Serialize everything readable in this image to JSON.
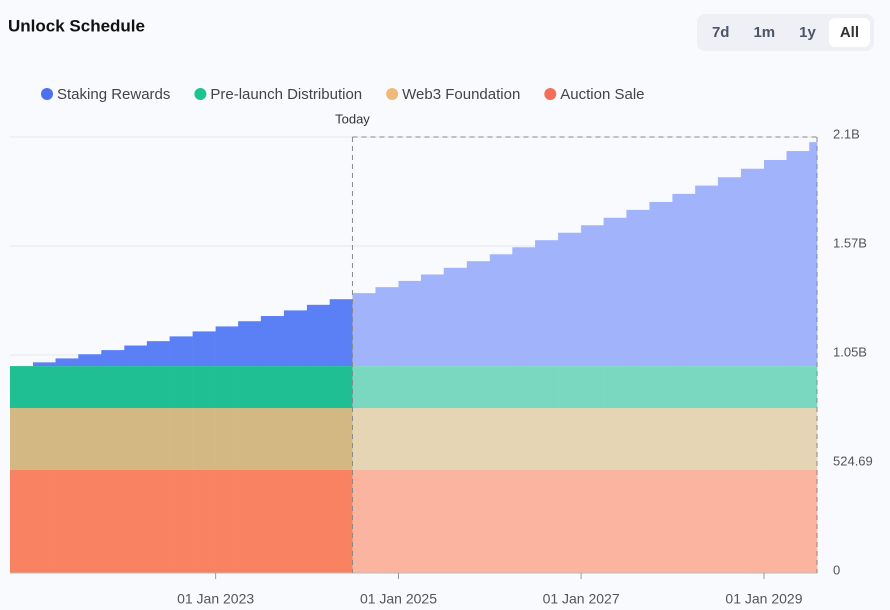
{
  "range_buttons": [
    "7d",
    "1m",
    "1y",
    "All"
  ],
  "active_range": "All",
  "chart_data": {
    "type": "stacked-step-area",
    "title": "Unlock Schedule",
    "today": {
      "label": "Today",
      "x": "2024-07-01"
    },
    "x": [
      "2020-10-01",
      "2021-01-01",
      "2021-04-01",
      "2021-07-01",
      "2021-10-01",
      "2022-01-01",
      "2022-04-01",
      "2022-07-01",
      "2022-10-01",
      "2023-01-01",
      "2023-04-01",
      "2023-07-01",
      "2023-10-01",
      "2024-01-01",
      "2024-04-01",
      "2024-07-01",
      "2024-10-01",
      "2025-01-01",
      "2025-04-01",
      "2025-07-01",
      "2025-10-01",
      "2026-01-01",
      "2026-04-01",
      "2026-07-01",
      "2026-10-01",
      "2027-01-01",
      "2027-04-01",
      "2027-07-01",
      "2027-10-01",
      "2028-01-01",
      "2028-04-01",
      "2028-07-01",
      "2028-10-01",
      "2029-01-01",
      "2029-04-01",
      "2029-07-01"
    ],
    "xlim": [
      "2020-10-01",
      "2029-08-01"
    ],
    "xticks": [
      {
        "value": "2023-01-01",
        "label": "01 Jan 2023"
      },
      {
        "value": "2025-01-01",
        "label": "01 Jan 2025"
      },
      {
        "value": "2027-01-01",
        "label": "01 Jan 2027"
      },
      {
        "value": "2029-01-01",
        "label": "01 Jan 2029"
      }
    ],
    "ylim": [
      0,
      2098.76
    ],
    "yticks": [
      0,
      524.69,
      {
        "value": 1049.38,
        "label": "1.05B"
      },
      {
        "value": 1574.07,
        "label": "1.57B"
      },
      {
        "value": 2098.76,
        "label": "2.1B"
      }
    ],
    "grid": true,
    "series": [
      {
        "name": "Staking Rewards",
        "color": "#5b7ff5",
        "future_color": "#a0b3fb",
        "legend_color": "#4d6ff0",
        "values": [
          0,
          18,
          37,
          57,
          77,
          99,
          120,
          143,
          167,
          191,
          216,
          241,
          268,
          295,
          322,
          351,
          380,
          410,
          441,
          473,
          505,
          538,
          572,
          606,
          642,
          678,
          714,
          752,
          790,
          829,
          869,
          909,
          950,
          992,
          1035,
          1078
        ]
      },
      {
        "name": "Pre-launch Distribution",
        "color": "#1fbe93",
        "future_color": "#7bd8c0",
        "legend_color": "#1dc48f",
        "values": [
          202,
          202,
          202,
          202,
          202,
          202,
          202,
          202,
          202,
          202,
          202,
          202,
          202,
          202,
          202,
          202,
          202,
          202,
          202,
          202,
          202,
          202,
          202,
          202,
          202,
          202,
          202,
          202,
          202,
          202,
          202,
          202,
          202,
          202,
          202,
          202
        ]
      },
      {
        "name": "Web3 Foundation",
        "color": "#d3b883",
        "future_color": "#e5d5b5",
        "legend_color": "#f0b97a",
        "values": [
          298,
          298,
          298,
          298,
          298,
          298,
          298,
          298,
          298,
          298,
          298,
          298,
          298,
          298,
          298,
          298,
          298,
          298,
          298,
          298,
          298,
          298,
          298,
          298,
          298,
          298,
          298,
          298,
          298,
          298,
          298,
          298,
          298,
          298,
          298,
          298
        ]
      },
      {
        "name": "Auction Sale",
        "color": "#f98262",
        "future_color": "#fbb4a0",
        "legend_color": "#f46e58",
        "values": [
          496,
          496,
          496,
          496,
          496,
          496,
          496,
          496,
          496,
          496,
          496,
          496,
          496,
          496,
          496,
          496,
          496,
          496,
          496,
          496,
          496,
          496,
          496,
          496,
          496,
          496,
          496,
          496,
          496,
          496,
          496,
          496,
          496,
          496,
          496,
          496
        ]
      }
    ]
  }
}
